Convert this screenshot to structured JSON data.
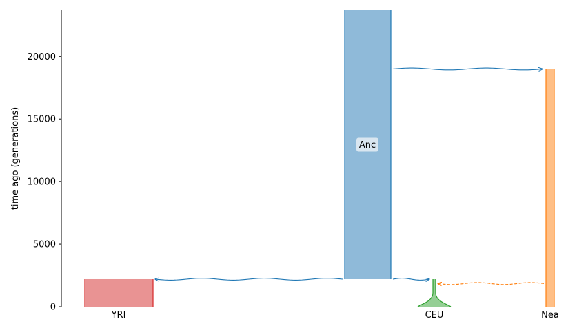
{
  "chart_data": {
    "type": "demography",
    "ylabel": "time ago (generations)",
    "ylim": [
      0,
      23700
    ],
    "yticks": [
      0,
      5000,
      10000,
      15000,
      20000
    ],
    "demes": [
      {
        "name": "YRI",
        "label": "YRI",
        "start_time": 2200,
        "end_time": 0,
        "color": "#d62728",
        "fill": "#e99393",
        "show_label": true
      },
      {
        "name": "Anc",
        "label": "Anc",
        "start_time": 23700,
        "end_time": 2200,
        "color": "#1f77b4",
        "fill": "#8fbad9",
        "show_label": true,
        "label_inside": true
      },
      {
        "name": "CEU",
        "label": "CEU",
        "start_time": 2200,
        "end_time": 0,
        "color": "#2ca02c",
        "fill": "#95cf95",
        "show_label": true,
        "growth": "exponential"
      },
      {
        "name": "Nea",
        "label": "Nea",
        "start_time": 19000,
        "end_time": 0,
        "color": "#ff7f0e",
        "fill": "#ffbf86",
        "show_label": true
      }
    ],
    "events": [
      {
        "type": "split",
        "source": "Anc",
        "dest": "Nea",
        "time": 19000
      },
      {
        "type": "split",
        "source": "Anc",
        "dest": "YRI",
        "time": 2200
      },
      {
        "type": "split",
        "source": "Anc",
        "dest": "CEU",
        "time": 2200
      },
      {
        "type": "pulse",
        "source": "Nea",
        "dest": "CEU",
        "time": 1850
      }
    ]
  }
}
